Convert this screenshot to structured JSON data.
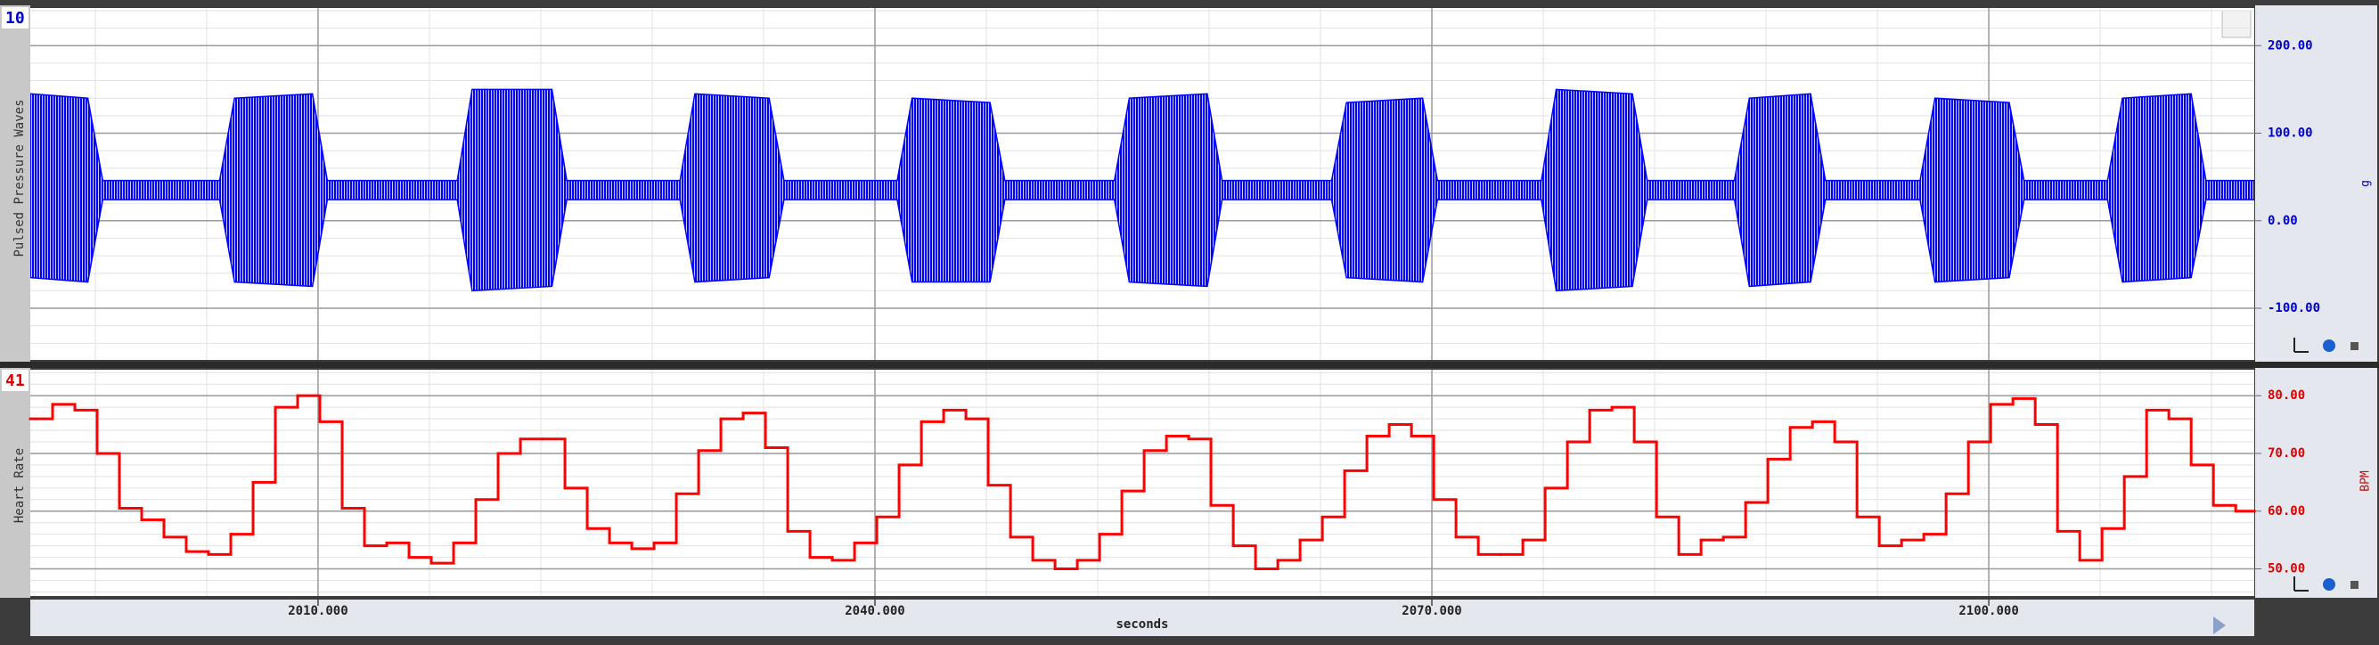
{
  "chart_data": [
    {
      "type": "area",
      "channel": "10",
      "ylabel": "Pulsed Pressure Waves",
      "unit": "g",
      "x": [
        1994.5,
        1997.6,
        1998.4,
        2004.7,
        2005.5,
        2009.7,
        2010.5,
        2017.5,
        2018.3,
        2022.6,
        2023.4,
        2029.5,
        2030.3,
        2034.3,
        2035.1,
        2041.2,
        2042.0,
        2046.2,
        2047.0,
        2052.9,
        2053.7,
        2057.9,
        2058.7,
        2064.6,
        2065.4,
        2069.5,
        2070.3,
        2075.9,
        2076.7,
        2080.8,
        2081.6,
        2086.3,
        2087.1,
        2090.4,
        2091.2,
        2096.3,
        2097.1,
        2101.1,
        2101.9,
        2106.4,
        2107.2,
        2110.9,
        2111.7,
        2114.3
      ],
      "series": [
        {
          "color": "#0000ff",
          "values": [
            145,
            140,
            46,
            46,
            140,
            145,
            46,
            46,
            150,
            150,
            46,
            46,
            145,
            140,
            46,
            46,
            140,
            135,
            46,
            46,
            140,
            145,
            46,
            46,
            135,
            140,
            46,
            46,
            150,
            145,
            46,
            46,
            140,
            145,
            46,
            46,
            140,
            135,
            46,
            46,
            140,
            145,
            46,
            46
          ]
        },
        {
          "color": "#0000ff",
          "values": [
            -65,
            -70,
            24,
            24,
            -70,
            -75,
            24,
            24,
            -80,
            -75,
            24,
            24,
            -70,
            -65,
            24,
            24,
            -70,
            -70,
            24,
            24,
            -70,
            -75,
            24,
            24,
            -65,
            -70,
            24,
            24,
            -80,
            -75,
            24,
            24,
            -75,
            -70,
            24,
            24,
            -70,
            -65,
            24,
            24,
            -70,
            -65,
            24,
            24
          ]
        }
      ],
      "xlim": [
        1994.5,
        2114.3
      ],
      "ylim": [
        -159,
        243
      ],
      "yticks": [
        {
          "value": 200,
          "label": "200.00"
        },
        {
          "value": 100,
          "label": "100.00"
        },
        {
          "value": 0,
          "label": "0.00"
        },
        {
          "value": -100,
          "label": "-100.00"
        }
      ],
      "grid": true
    },
    {
      "type": "step",
      "channel": "41",
      "ylabel": "Heart Rate",
      "unit": "BPM",
      "xlabel": "seconds",
      "x": [
        1994.5,
        1995.7,
        1996.9,
        1998.1,
        1999.3,
        2000.5,
        2001.7,
        2002.9,
        2004.1,
        2005.3,
        2006.5,
        2007.7,
        2008.9,
        2010.1,
        2011.3,
        2012.5,
        2013.7,
        2014.9,
        2016.1,
        2017.3,
        2018.5,
        2019.7,
        2020.9,
        2022.1,
        2023.3,
        2024.5,
        2025.7,
        2026.9,
        2028.1,
        2029.3,
        2030.5,
        2031.7,
        2032.9,
        2034.1,
        2035.3,
        2036.5,
        2037.7,
        2038.9,
        2040.1,
        2041.3,
        2042.5,
        2043.7,
        2044.9,
        2046.1,
        2047.3,
        2048.5,
        2049.7,
        2050.9,
        2052.1,
        2053.3,
        2054.5,
        2055.7,
        2056.9,
        2058.1,
        2059.3,
        2060.5,
        2061.7,
        2062.9,
        2064.1,
        2065.3,
        2066.5,
        2067.7,
        2068.9,
        2070.1,
        2071.3,
        2072.5,
        2073.7,
        2074.9,
        2076.1,
        2077.3,
        2078.5,
        2079.7,
        2080.9,
        2082.1,
        2083.3,
        2084.5,
        2085.7,
        2086.9,
        2088.1,
        2089.3,
        2090.5,
        2091.7,
        2092.9,
        2094.1,
        2095.3,
        2096.5,
        2097.7,
        2098.9,
        2100.1,
        2101.3,
        2102.5,
        2103.7,
        2104.9,
        2106.1,
        2107.3,
        2108.5,
        2109.7,
        2110.9,
        2112.1,
        2113.3
      ],
      "series": [
        {
          "color": "#ff0000",
          "values": [
            76,
            78.5,
            77.5,
            70,
            60.5,
            58.5,
            55.5,
            53,
            52.5,
            56,
            65,
            78,
            80,
            75.5,
            60.5,
            54,
            54.5,
            52,
            51,
            54.5,
            62,
            70,
            72.5,
            72.5,
            64,
            57,
            54.5,
            53.5,
            54.5,
            63,
            70.5,
            76,
            77,
            71,
            56.5,
            52,
            51.5,
            54.5,
            59,
            68,
            75.5,
            77.5,
            76,
            64.5,
            55.5,
            51.5,
            50,
            51.5,
            56,
            63.5,
            70.5,
            73,
            72.5,
            61,
            54,
            50,
            51.5,
            55,
            59,
            67,
            73,
            75,
            73,
            62,
            55.5,
            52.5,
            52.5,
            55,
            64,
            72,
            77.5,
            78,
            72,
            59,
            52.5,
            55,
            55.5,
            61.5,
            69,
            74.5,
            75.5,
            72,
            59,
            54,
            55,
            56,
            63,
            72,
            78.5,
            79.5,
            75,
            56.5,
            51.5,
            57,
            66,
            77.5,
            76,
            68,
            61,
            60
          ]
        }
      ],
      "xlim": [
        1994.5,
        2114.3
      ],
      "ylim": [
        45.3,
        84.5
      ],
      "yticks": [
        {
          "value": 80,
          "label": "80.00"
        },
        {
          "value": 70,
          "label": "70.00"
        },
        {
          "value": 60,
          "label": "60.00"
        },
        {
          "value": 50,
          "label": "50.00"
        }
      ],
      "xticks": [
        {
          "value": 2010,
          "label": "2010.000"
        },
        {
          "value": 2040,
          "label": "2040.000"
        },
        {
          "value": 2070,
          "label": "2070.000"
        },
        {
          "value": 2100,
          "label": "2100.000"
        }
      ],
      "grid": true
    }
  ]
}
